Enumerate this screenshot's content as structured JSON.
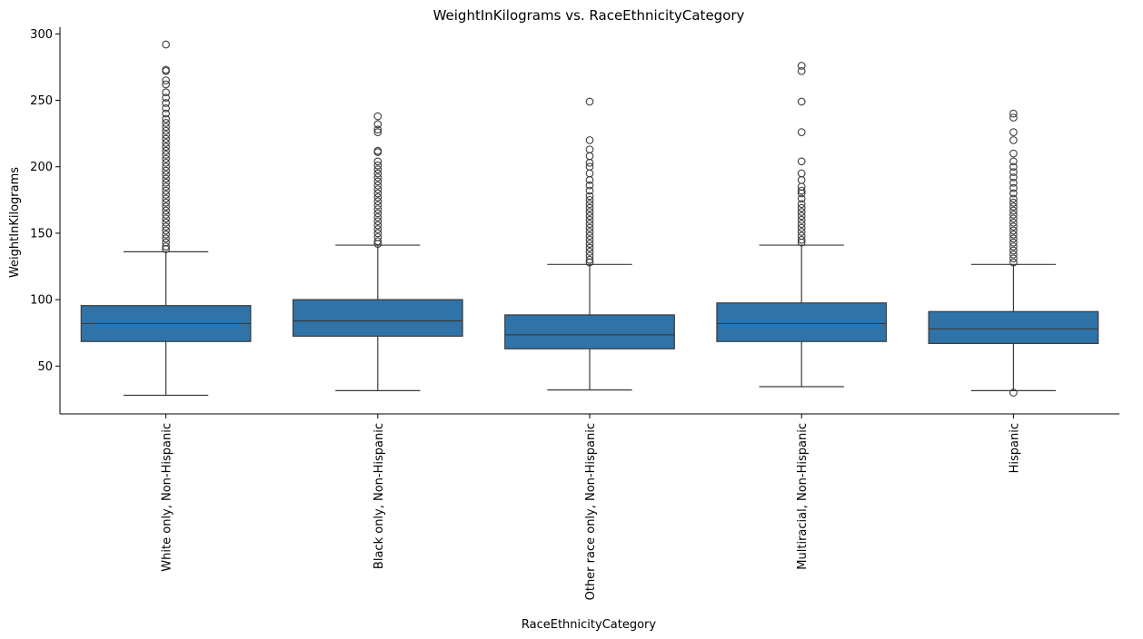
{
  "chart_data": {
    "type": "box",
    "title": "WeightInKilograms vs. RaceEthnicityCategory",
    "xlabel": "RaceEthnicityCategory",
    "ylabel": "WeightInKilograms",
    "ylim": [
      14,
      305
    ],
    "yticks": [
      50,
      100,
      150,
      200,
      250,
      300
    ],
    "grid": false,
    "box_color": "#2f73a8",
    "line_color": "#3b3b3b",
    "categories": [
      "White only, Non-Hispanic",
      "Black only, Non-Hispanic",
      "Other race only, Non-Hispanic",
      "Multiracial, Non-Hispanic",
      "Hispanic"
    ],
    "boxes": [
      {
        "whisker_low": 28,
        "q1": 68.5,
        "median": 82,
        "q3": 95.5,
        "whisker_high": 136,
        "fliers": [
          292,
          273,
          272,
          265,
          262,
          256,
          252,
          248,
          244,
          240,
          236,
          233,
          230,
          227,
          224,
          221,
          218,
          215,
          212,
          209,
          206,
          203,
          200,
          197,
          194,
          191,
          188,
          185,
          182,
          179,
          176,
          173,
          170,
          167,
          164,
          161,
          158,
          155,
          152,
          149,
          146,
          143,
          140,
          138
        ]
      },
      {
        "whisker_low": 31.5,
        "q1": 72.5,
        "median": 84,
        "q3": 100,
        "whisker_high": 141,
        "fliers": [
          238,
          232,
          228,
          226,
          212,
          211,
          204,
          201,
          198,
          195,
          192,
          189,
          186,
          183,
          180,
          177,
          174,
          171,
          168,
          165,
          162,
          159,
          156,
          153,
          150,
          147,
          144,
          142
        ]
      },
      {
        "whisker_low": 32,
        "q1": 63,
        "median": 73.5,
        "q3": 88.5,
        "whisker_high": 126.5,
        "fliers": [
          249,
          220,
          213,
          208,
          203,
          200,
          195,
          190,
          186,
          182,
          178,
          175,
          172,
          169,
          166,
          163,
          160,
          157,
          154,
          151,
          148,
          145,
          142,
          139,
          136,
          133,
          130,
          128
        ]
      },
      {
        "whisker_low": 34.5,
        "q1": 68.5,
        "median": 82,
        "q3": 97.5,
        "whisker_high": 141,
        "fliers": [
          276,
          272,
          249,
          226,
          204,
          195,
          190,
          185,
          182,
          180,
          176,
          172,
          169,
          166,
          163,
          160,
          157,
          154,
          151,
          148,
          145,
          143
        ]
      },
      {
        "whisker_low": 31.5,
        "q1": 67,
        "median": 78,
        "q3": 91,
        "whisker_high": 126.5,
        "fliers": [
          240,
          237,
          226,
          220,
          210,
          204,
          200,
          196,
          192,
          188,
          184,
          180,
          176,
          173,
          170,
          167,
          164,
          161,
          158,
          155,
          152,
          149,
          146,
          143,
          140,
          137,
          134,
          131,
          128,
          30
        ]
      }
    ]
  }
}
